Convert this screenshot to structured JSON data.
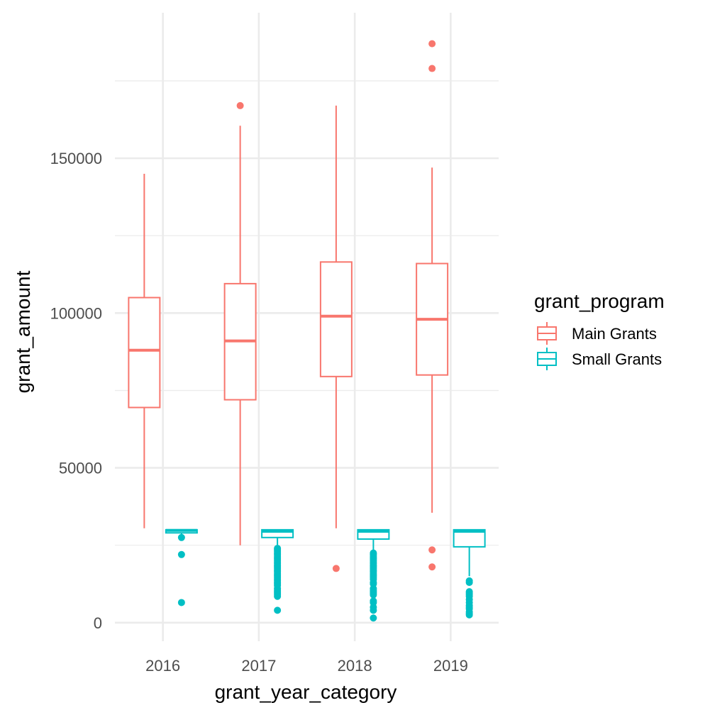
{
  "chart_data": {
    "type": "boxplot",
    "xlabel": "grant_year_category",
    "ylabel": "grant_amount",
    "categories": [
      "2016",
      "2017",
      "2018",
      "2019"
    ],
    "y_ticks": [
      0,
      50000,
      100000,
      150000
    ],
    "y_tick_labels": [
      "0",
      "50000",
      "100000",
      "150000"
    ],
    "ylim": [
      -6000,
      197000
    ],
    "grid": true,
    "legend": {
      "title": "grant_program",
      "position": "right",
      "entries": [
        "Main Grants",
        "Small Grants"
      ]
    },
    "series": [
      {
        "name": "Main Grants",
        "color": "#F8766D",
        "boxes": [
          {
            "category": "2016",
            "whisker_low": 30500,
            "q1": 69500,
            "median": 88000,
            "q3": 105000,
            "whisker_high": 145000,
            "outliers": []
          },
          {
            "category": "2017",
            "whisker_low": 25000,
            "q1": 72000,
            "median": 91000,
            "q3": 109500,
            "whisker_high": 160500,
            "outliers": [
              167000
            ]
          },
          {
            "category": "2018",
            "whisker_low": 30500,
            "q1": 79500,
            "median": 99000,
            "q3": 116500,
            "whisker_high": 167000,
            "outliers": [
              17500
            ]
          },
          {
            "category": "2019",
            "whisker_low": 35500,
            "q1": 80000,
            "median": 98000,
            "q3": 116000,
            "whisker_high": 147000,
            "outliers": [
              187000,
              179000,
              23500,
              18000
            ]
          }
        ]
      },
      {
        "name": "Small Grants",
        "color": "#00BFC4",
        "boxes": [
          {
            "category": "2016",
            "whisker_low": 28500,
            "q1": 29000,
            "median": 29800,
            "q3": 30000,
            "whisker_high": 30000,
            "outliers": [
              27500,
              22000,
              6500
            ]
          },
          {
            "category": "2017",
            "whisker_low": 24500,
            "q1": 27500,
            "median": 29500,
            "q3": 30000,
            "whisker_high": 30000,
            "outliers": [
              24000,
              23500,
              23000,
              22500,
              22000,
              21500,
              21000,
              20500,
              20000,
              19500,
              19000,
              18500,
              18000,
              17500,
              17000,
              16500,
              16000,
              15500,
              15000,
              14500,
              14000,
              13500,
              13000,
              12500,
              12000,
              11000,
              10500,
              10000,
              9500,
              9000,
              8500,
              4000
            ]
          },
          {
            "category": "2018",
            "whisker_low": 23000,
            "q1": 27000,
            "median": 29500,
            "q3": 30000,
            "whisker_high": 30000,
            "outliers": [
              22500,
              22000,
              21500,
              21000,
              20500,
              20000,
              19500,
              19000,
              18500,
              18000,
              17500,
              17000,
              16500,
              16000,
              15500,
              15000,
              14500,
              14000,
              13000,
              12500,
              11000,
              10500,
              10000,
              9500,
              9000,
              7000,
              6500,
              5000,
              4000,
              1500
            ]
          },
          {
            "category": "2019",
            "whisker_low": 15000,
            "q1": 24500,
            "median": 29500,
            "q3": 30000,
            "whisker_high": 30000,
            "outliers": [
              13500,
              13000,
              10000,
              9500,
              9000,
              8500,
              7500,
              6500,
              5500,
              5000,
              4500,
              3500,
              3000,
              2500
            ]
          }
        ]
      }
    ]
  }
}
